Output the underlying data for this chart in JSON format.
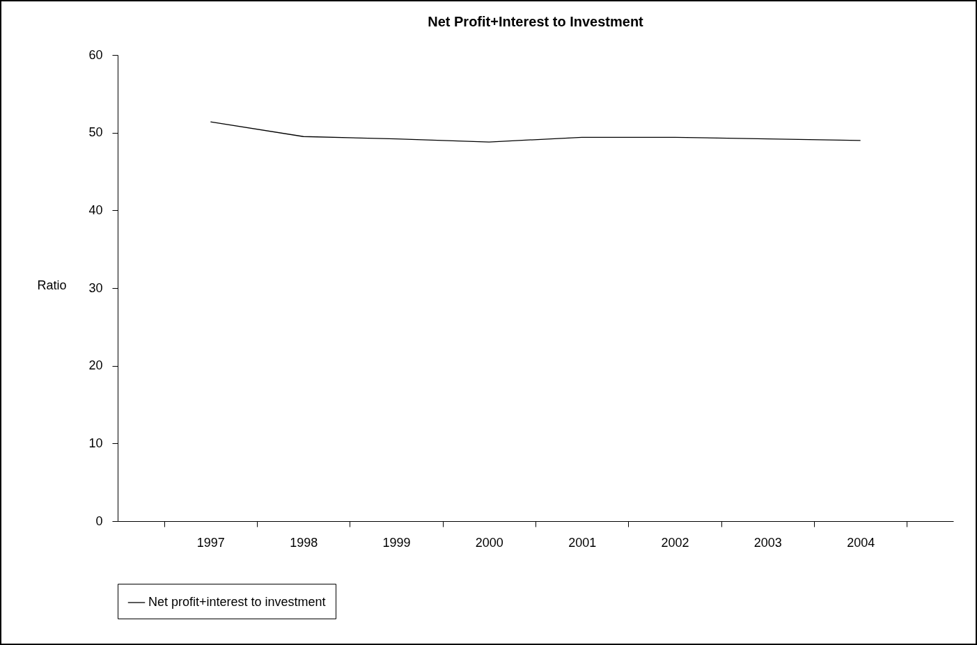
{
  "chart_data": {
    "type": "line",
    "title": "Net Profit+Interest to Investment",
    "ylabel": "Ratio",
    "categories": [
      "1997",
      "1998",
      "1999",
      "2000",
      "2001",
      "2002",
      "2003",
      "2004"
    ],
    "series": [
      {
        "name": "Net profit+interest to investment",
        "color": "#000000",
        "values": [
          51.4,
          49.5,
          49.2,
          48.8,
          49.4,
          49.4,
          49.2,
          49.0
        ]
      }
    ],
    "ylim": [
      0,
      60
    ],
    "yticks": [
      0,
      10,
      20,
      30,
      40,
      50,
      60
    ],
    "grid": false,
    "legend": "bottom",
    "marker": "none",
    "line_style": "solid"
  }
}
